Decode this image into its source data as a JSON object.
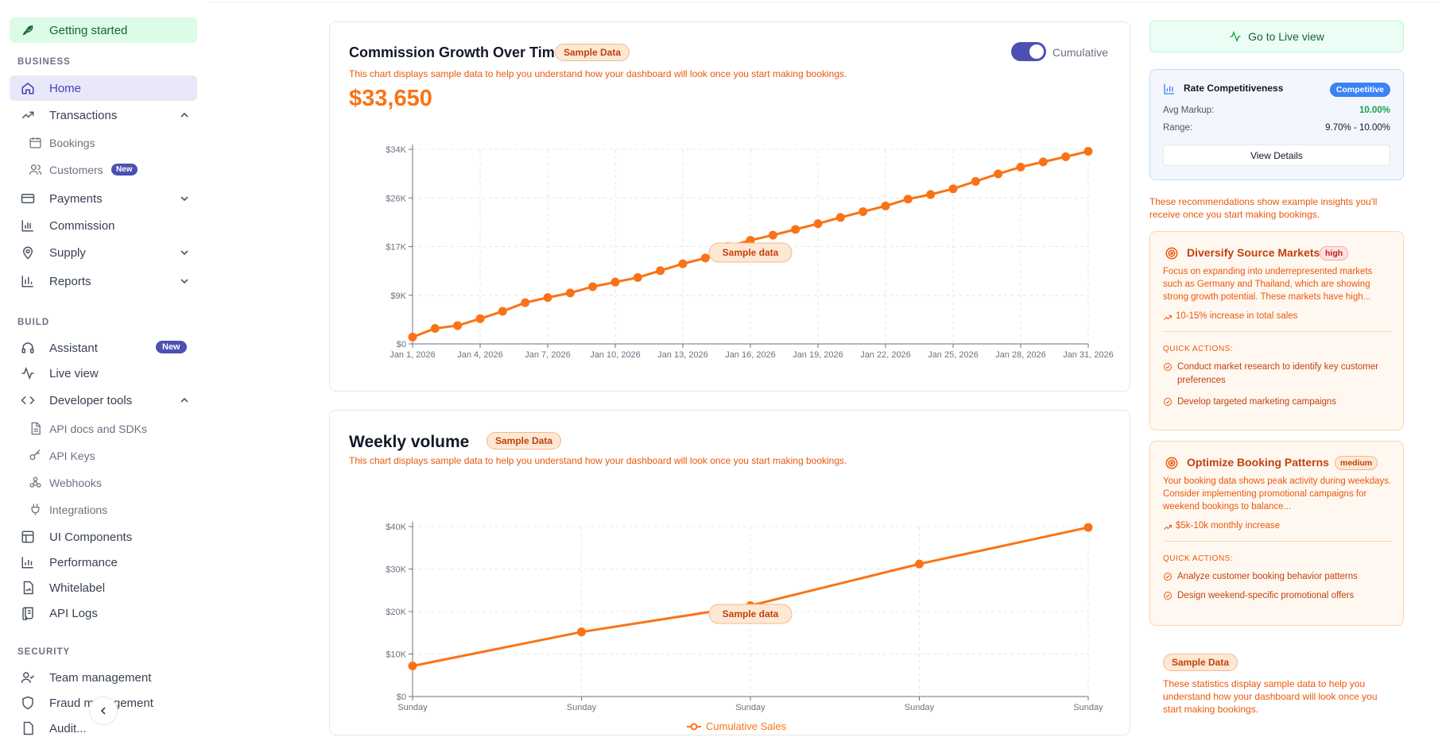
{
  "sidebar": {
    "getting_started": "Getting started",
    "sections": {
      "business": "BUSINESS",
      "build": "BUILD",
      "security": "SECURITY"
    },
    "items": {
      "home": "Home",
      "transactions": "Transactions",
      "bookings": "Bookings",
      "customers": "Customers",
      "payments": "Payments",
      "commission": "Commission",
      "supply": "Supply",
      "reports": "Reports",
      "assistant": "Assistant",
      "live_view": "Live view",
      "developer_tools": "Developer tools",
      "api_docs": "API docs and SDKs",
      "api_keys": "API Keys",
      "webhooks": "Webhooks",
      "integrations": "Integrations",
      "ui_components": "UI Components",
      "performance": "Performance",
      "whitelabel": "Whitelabel",
      "api_logs": "API Logs",
      "team_management": "Team management",
      "fraud_management": "Fraud management",
      "audit": "Audit..."
    },
    "badges": {
      "customers_new": "New",
      "assistant_new": "New"
    }
  },
  "commission_chart": {
    "title": "Commission Growth Over Time",
    "sample_badge": "Sample Data",
    "disclaimer": "This chart displays sample data to help you understand how your dashboard will look once you start making bookings.",
    "total": "$33,650",
    "toggle_label": "Cumulative",
    "toggle_on": true,
    "overlay_label": "Sample data"
  },
  "weekly_chart": {
    "title": "Weekly volume",
    "sample_badge": "Sample Data",
    "disclaimer": "This chart displays sample data to help you understand how your dashboard will look once you start making bookings.",
    "overlay_label": "Sample data",
    "legend_label": "Cumulative Sales"
  },
  "chart_data": [
    {
      "type": "line",
      "title": "Commission Growth Over Time",
      "x_ticks": [
        "Jan 1, 2026",
        "Jan 4, 2026",
        "Jan 7, 2026",
        "Jan 10, 2026",
        "Jan 13, 2026",
        "Jan 16, 2026",
        "Jan 19, 2026",
        "Jan 22, 2026",
        "Jan 25, 2026",
        "Jan 28, 2026",
        "Jan 31, 2026"
      ],
      "y_ticks": [
        "$0",
        "$9K",
        "$17K",
        "$26K",
        "$34K"
      ],
      "ylim": [
        0,
        34000
      ],
      "x": [
        "2026-01-01",
        "2026-01-02",
        "2026-01-03",
        "2026-01-04",
        "2026-01-05",
        "2026-01-06",
        "2026-01-07",
        "2026-01-08",
        "2026-01-09",
        "2026-01-10",
        "2026-01-11",
        "2026-01-12",
        "2026-01-13",
        "2026-01-14",
        "2026-01-15",
        "2026-01-16",
        "2026-01-17",
        "2026-01-18",
        "2026-01-19",
        "2026-01-20",
        "2026-01-21",
        "2026-01-22",
        "2026-01-23",
        "2026-01-24",
        "2026-01-25",
        "2026-01-26",
        "2026-01-27",
        "2026-01-28",
        "2026-01-29",
        "2026-01-30",
        "2026-01-31"
      ],
      "values": [
        1200,
        2700,
        3200,
        4400,
        5700,
        7200,
        8100,
        8900,
        10000,
        10800,
        11600,
        12800,
        14000,
        15000,
        17000,
        18100,
        19000,
        20000,
        21000,
        22100,
        23100,
        24100,
        25300,
        26100,
        27100,
        28400,
        29700,
        30900,
        31800,
        32700,
        33650
      ],
      "color": "#f97316"
    },
    {
      "type": "line",
      "title": "Weekly volume",
      "categories": [
        "Sunday",
        "Sunday",
        "Sunday",
        "Sunday",
        "Sunday"
      ],
      "y_ticks": [
        "$0",
        "$10K",
        "$20K",
        "$30K",
        "$40K"
      ],
      "ylim": [
        0,
        40000
      ],
      "series": [
        {
          "name": "Cumulative Sales",
          "values": [
            7200,
            15200,
            21400,
            31200,
            39800
          ]
        }
      ],
      "color": "#f97316"
    }
  ],
  "right_panel": {
    "live_button": "Go to Live view",
    "rate": {
      "title": "Rate Competitiveness",
      "badge": "Competitive",
      "avg_markup_label": "Avg Markup:",
      "avg_markup_value": "10.00%",
      "range_label": "Range:",
      "range_value": "9.70% - 10.00%",
      "button": "View Details"
    },
    "recommend_note": "These recommendations show example insights you'll receive once you start making bookings.",
    "recommendations": [
      {
        "title": "Diversify Source Markets",
        "priority": "high",
        "description": "Focus on expanding into underrepresented markets such as Germany and Thailand, which are showing strong growth potential. These markets have high...",
        "impact": "10-15% increase in total sales",
        "quick_actions_label": "QUICK ACTIONS:",
        "actions": [
          "Conduct market research to identify key customer preferences",
          "Develop targeted marketing campaigns"
        ]
      },
      {
        "title": "Optimize Booking Patterns",
        "priority": "medium",
        "description": "Your booking data shows peak activity during weekdays. Consider implementing promotional campaigns for weekend bookings to balance...",
        "impact": "$5k-10k monthly increase",
        "quick_actions_label": "QUICK ACTIONS:",
        "actions": [
          "Analyze customer booking behavior patterns",
          "Design weekend-specific promotional offers"
        ]
      }
    ],
    "stats_badge": "Sample Data",
    "stats_note": "These statistics display sample data to help you understand how your dashboard will look once you start making bookings."
  },
  "colors": {
    "accent": "#f97316",
    "primary": "#4c4fb3",
    "success": "#16a34a",
    "info": "#3b82f6"
  }
}
